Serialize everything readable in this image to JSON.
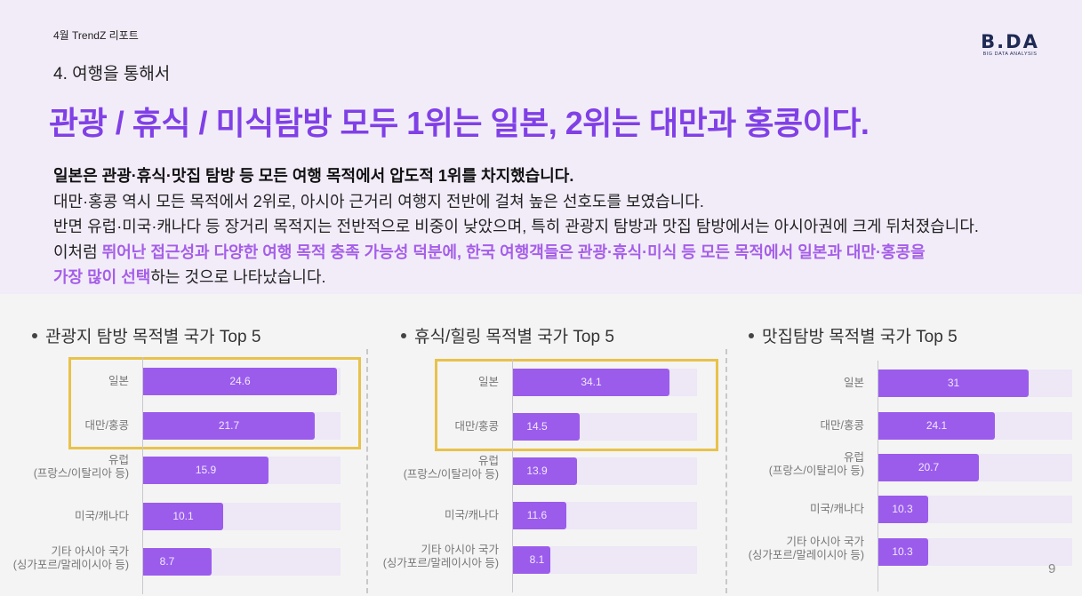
{
  "header": {
    "report_label": "4월 TrendZ 리포트",
    "section_label": "4. 여행을 통해서",
    "logo": {
      "main": "B.DA",
      "sub": "BIG DATA ANALYSIS",
      "icon": "rocket-icon"
    },
    "headline": "관광 / 휴식 / 미식탐방 모두 1위는 일본, 2위는 대만과 홍콩이다.",
    "paragraph": {
      "line1": "일본은 관광·휴식·맛집 탐방 등 모든 여행 목적에서 압도적 1위를 차지했습니다.",
      "line2": "대만·홍콩 역시 모든 목적에서 2위로, 아시아 근거리 여행지 전반에 걸쳐 높은 선호도를 보였습니다.",
      "line3": "반면 유럽·미국·캐나다 등 장거리 목적지는 전반적으로 비중이 낮았으며, 특히 관광지 탐방과 맛집 탐방에서는 아시아권에 크게 뒤처졌습니다.",
      "line4_prefix": "이처럼 ",
      "line4_highlight": "뛰어난 접근성과 다양한 여행 목적 충족 가능성 덕분에, 한국 여행객들은 관광·휴식·미식 등 모든 목적에서 일본과 대만·홍콩을",
      "line5_highlight": "가장 많이 선택",
      "line5_suffix": "하는 것으로 나타났습니다."
    }
  },
  "colors": {
    "accent": "#8040e6",
    "bar": "#9b5cec",
    "track": "#ede7f6",
    "highlight_box": "#e8c24a",
    "header_bg": "#f2ecf9"
  },
  "page_number": "9",
  "chart_data": [
    {
      "type": "bar",
      "orientation": "horizontal",
      "title": "관광지 탐방 목적별 국가 Top 5",
      "categories": [
        "일본",
        "대만/홍콩",
        "유럽 (프랑스/이탈리아 등)",
        "미국/캐나다",
        "기타 아시아 국가 (싱가포르/말레이시아 등)"
      ],
      "values": [
        24.6,
        21.7,
        15.9,
        10.1,
        8.7
      ],
      "highlighted": [
        "일본",
        "대만/홍콩"
      ],
      "xlim": [
        0,
        25
      ],
      "grid": false
    },
    {
      "type": "bar",
      "orientation": "horizontal",
      "title": "휴식/힐링 목적별 국가 Top 5",
      "categories": [
        "일본",
        "대만/홍콩",
        "유럽 (프랑스/이탈리아 등)",
        "미국/캐나다",
        "기타 아시아 국가 (싱가포르/말레이시아 등)"
      ],
      "values": [
        34.1,
        14.5,
        13.9,
        11.6,
        8.1
      ],
      "highlighted": [
        "일본",
        "대만/홍콩"
      ],
      "xlim": [
        0,
        40
      ],
      "grid": false
    },
    {
      "type": "bar",
      "orientation": "horizontal",
      "title": "맛집탐방 목적별 국가 Top 5",
      "categories": [
        "일본",
        "대만/홍콩",
        "유럽 (프랑스/이탈리아 등)",
        "미국/캐나다",
        "기타 아시아 국가 (싱가포르/말레이시아 등)"
      ],
      "values": [
        31,
        24.1,
        20.7,
        10.3,
        10.3
      ],
      "highlighted": [],
      "xlim": [
        0,
        40
      ],
      "grid": false
    }
  ],
  "charts": [
    {
      "title": "관광지 탐방 목적별 국가 Top 5",
      "rows": [
        {
          "label1": "일본",
          "label2": "",
          "value": "24.6"
        },
        {
          "label1": "대만/홍콩",
          "label2": "",
          "value": "21.7"
        },
        {
          "label1": "유럽",
          "label2": "(프랑스/이탈리아 등)",
          "value": "15.9"
        },
        {
          "label1": "미국/캐나다",
          "label2": "",
          "value": "10.1"
        },
        {
          "label1": "기타 아시아 국가",
          "label2": "(싱가포르/말레이시아 등)",
          "value": "8.7"
        }
      ]
    },
    {
      "title": "휴식/힐링 목적별 국가 Top 5",
      "rows": [
        {
          "label1": "일본",
          "label2": "",
          "value": "34.1"
        },
        {
          "label1": "대만/홍콩",
          "label2": "",
          "value": "14.5"
        },
        {
          "label1": "유럽",
          "label2": "(프랑스/이탈리아 등)",
          "value": "13.9"
        },
        {
          "label1": "미국/캐나다",
          "label2": "",
          "value": "11.6"
        },
        {
          "label1": "기타 아시아 국가",
          "label2": "(싱가포르/말레이시아 등)",
          "value": "8.1"
        }
      ]
    },
    {
      "title": "맛집탐방 목적별 국가 Top 5",
      "rows": [
        {
          "label1": "일본",
          "label2": "",
          "value": "31"
        },
        {
          "label1": "대만/홍콩",
          "label2": "",
          "value": "24.1"
        },
        {
          "label1": "유럽",
          "label2": "(프랑스/이탈리아 등)",
          "value": "20.7"
        },
        {
          "label1": "미국/캐나다",
          "label2": "",
          "value": "10.3"
        },
        {
          "label1": "기타 아시아 국가",
          "label2": "(싱가포르/말레이시아 등)",
          "value": "10.3"
        }
      ]
    }
  ]
}
